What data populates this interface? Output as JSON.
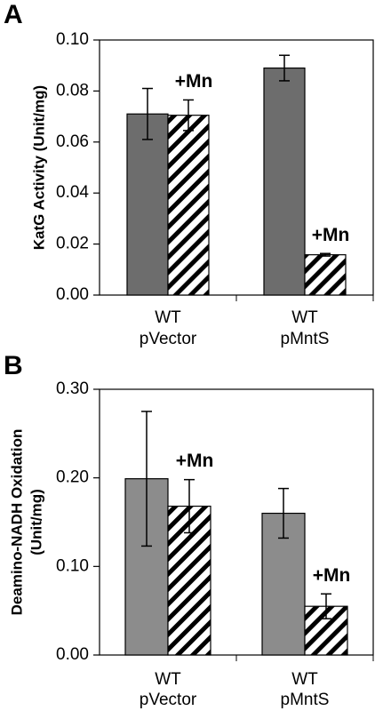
{
  "chart_data": [
    {
      "type": "bar",
      "panel": "A",
      "ylabel": [
        "KatG Activity (Unit/mg)"
      ],
      "categories": [
        [
          "WT",
          "pVector"
        ],
        [
          "WT",
          "pMntS"
        ]
      ],
      "series": [
        {
          "color": "#6d6d6d",
          "pattern": "solid",
          "values": [
            0.071,
            0.089
          ],
          "errors": [
            0.01,
            0.005
          ]
        },
        {
          "color": "#000000",
          "pattern": "hatch",
          "values": [
            0.0705,
            0.0158
          ],
          "errors": [
            0.006,
            0.0005
          ]
        }
      ],
      "annotations": [
        "+Mn",
        "+Mn"
      ],
      "ylim": [
        0,
        0.1
      ],
      "yticks": [
        {
          "value": 0,
          "label": "0.00"
        },
        0.02,
        0.04,
        0.06,
        0.08,
        {
          "value": 0.1,
          "label": "0.10"
        }
      ]
    },
    {
      "type": "bar",
      "panel": "B",
      "ylabel": [
        "Deamino-NADH Oxidation",
        "(Unit/mg)"
      ],
      "categories": [
        [
          "WT",
          "pVector"
        ],
        [
          "WT",
          "pMntS"
        ]
      ],
      "series": [
        {
          "color": "#8c8c8c",
          "pattern": "solid",
          "values": [
            0.199,
            0.16
          ],
          "errors": [
            0.076,
            0.028
          ]
        },
        {
          "color": "#000000",
          "pattern": "hatch",
          "values": [
            0.168,
            0.055
          ],
          "errors": [
            0.03,
            0.014
          ]
        }
      ],
      "annotations": [
        "+Mn",
        "+Mn"
      ],
      "ylim": [
        0,
        0.3
      ],
      "yticks": [
        {
          "value": 0,
          "label": "0.00"
        },
        {
          "value": 0.1,
          "label": "0.10"
        },
        {
          "value": 0.2,
          "label": "0.20"
        },
        {
          "value": 0.3,
          "label": "0.30"
        }
      ]
    }
  ]
}
